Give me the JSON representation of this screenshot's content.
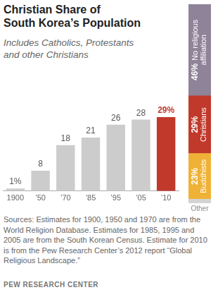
{
  "chart_data": [
    {
      "type": "bar",
      "title": "Christian Share of\nSouth Korea’s Population",
      "subtitle": "Includes Catholics, Protestants\nand other Christians",
      "categories": [
        "1900",
        "’50",
        "’70",
        "’85",
        "’95",
        "’05",
        "’10"
      ],
      "values": [
        1,
        8,
        18,
        21,
        26,
        28,
        29
      ],
      "value_labels": [
        "1%",
        "8",
        "18",
        "21",
        "26",
        "28",
        "29%"
      ],
      "colors": [
        "#cccccc",
        "#cccccc",
        "#cccccc",
        "#cccccc",
        "#cccccc",
        "#cccccc",
        "#c0392b"
      ],
      "ylim": [
        0,
        29
      ],
      "tick_labels": "x",
      "grid": false,
      "data_labels": true,
      "annotations": [
        "Sources: Estimates for 1900, 1950 and 1970 are from the World Religion Database. Estimates for 1985, 1995 and 2005 are from the South Korean Census. Estimate for 2010 is from the Pew Research Center’s 2012 report “Global Religious Landscape.”",
        "PEW RESEARCH CENTER"
      ]
    },
    {
      "type": "bar",
      "stacked": true,
      "categories": [
        null
      ],
      "ylim": [
        0,
        100
      ],
      "tick_labels": false,
      "grid": false,
      "data_labels": true,
      "series": [
        {
          "name": "Other",
          "color": "#d3d3d3",
          "values": [
            2
          ],
          "value_labels": [
            null
          ]
        },
        {
          "name": "Buddhists",
          "color": "#efb236",
          "values": [
            23
          ],
          "value_labels": [
            "23%"
          ]
        },
        {
          "name": "Christians",
          "color": "#c0392b",
          "values": [
            29
          ],
          "value_labels": [
            "29%"
          ]
        },
        {
          "name": "No religious affiliation",
          "color": "#8f8399",
          "values": [
            46
          ],
          "value_labels": [
            "46%"
          ]
        }
      ]
    }
  ]
}
